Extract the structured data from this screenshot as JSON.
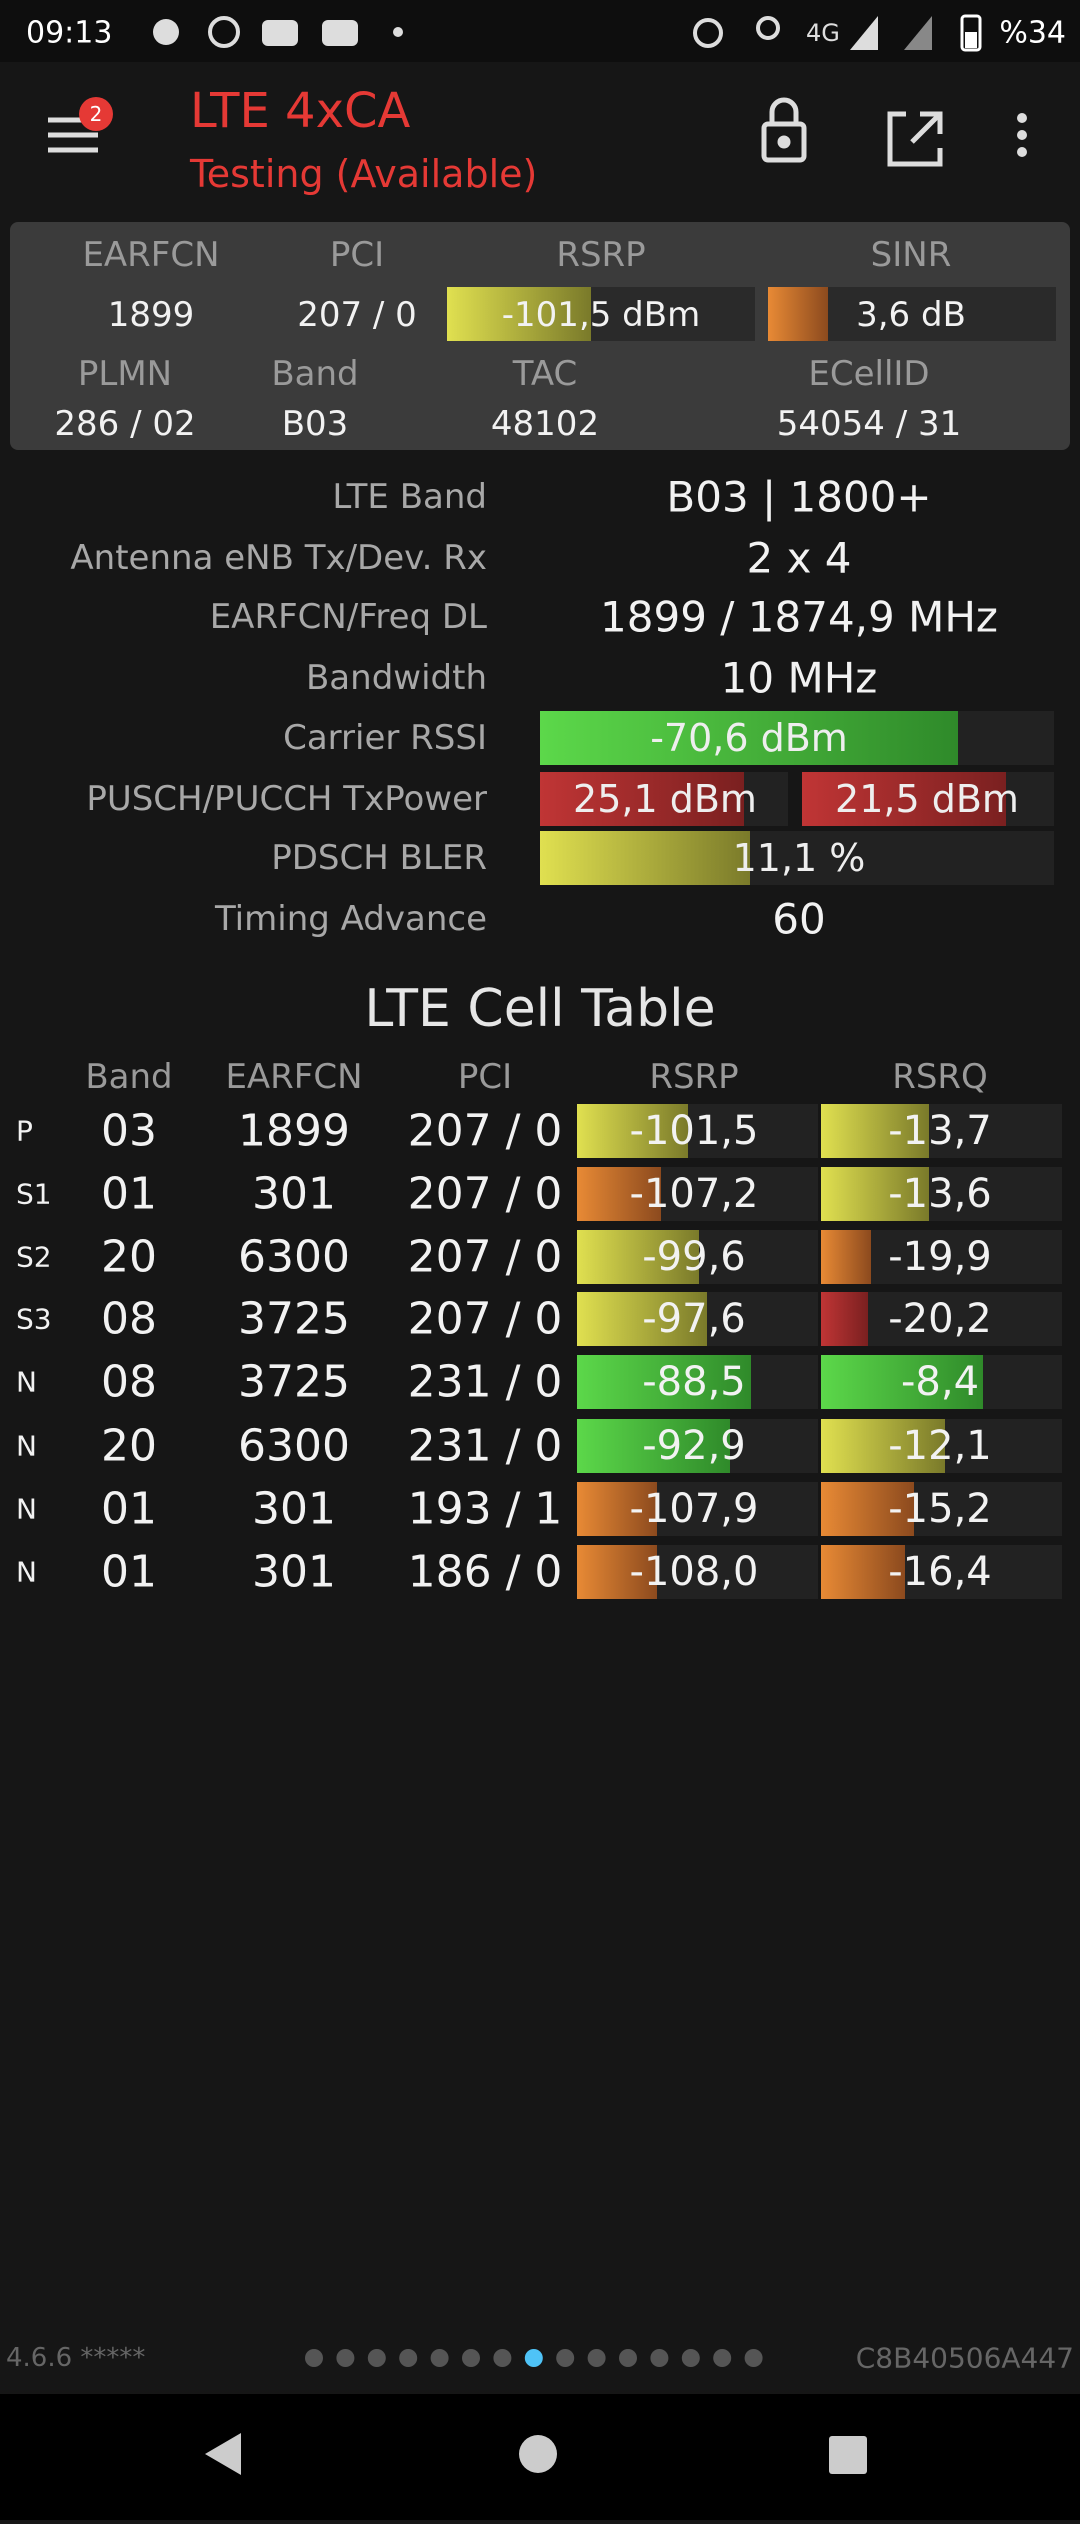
{
  "status_bar": {
    "time": "09:13",
    "network": "4G",
    "battery": "%34"
  },
  "app_bar": {
    "badge": "2",
    "title": "LTE 4xCA",
    "subtitle": "Testing (Available)"
  },
  "summary": {
    "headers": [
      "EARFCN",
      "PCI",
      "RSRP",
      "SINR"
    ],
    "values": [
      "1899",
      "207 / 0",
      "-101,5 dBm",
      "3,6 dB"
    ],
    "headers2": [
      "PLMN",
      "Band",
      "TAC",
      "ECellID"
    ],
    "values2": [
      "286 / 02",
      "B03",
      "48102",
      "54054 / 31"
    ]
  },
  "details": [
    {
      "label": "LTE Band",
      "values": [
        "B03 | 1800+"
      ]
    },
    {
      "label": "Antenna eNB Tx/Dev. Rx",
      "values": [
        "2 x 4"
      ]
    },
    {
      "label": "EARFCN/Freq DL",
      "values": [
        "1899 / 1874,9 MHz"
      ]
    },
    {
      "label": "Bandwidth",
      "values": [
        "10 MHz"
      ]
    },
    {
      "label": "Carrier RSSI",
      "values": [
        "-70,6 dBm"
      ]
    },
    {
      "label": "PUSCH/PUCCH TxPower",
      "values": [
        "25,1 dBm",
        "21,5 dBm"
      ]
    },
    {
      "label": "PDSCH BLER",
      "values": [
        "11,1 %"
      ]
    },
    {
      "label": "Timing Advance",
      "values": [
        "60"
      ]
    }
  ],
  "cell_table": {
    "title": "LTE Cell Table",
    "columns": [
      "Band",
      "EARFCN",
      "PCI",
      "RSRP",
      "RSRQ"
    ],
    "rows": [
      [
        "P",
        "03",
        "1899",
        "207 / 0",
        "-101,5",
        "-13,7"
      ],
      [
        "S1",
        "01",
        "301",
        "207 / 0",
        "-107,2",
        "-13,6"
      ],
      [
        "S2",
        "20",
        "6300",
        "207 / 0",
        "-99,6",
        "-19,9"
      ],
      [
        "S3",
        "08",
        "3725",
        "207 / 0",
        "-97,6",
        "-20,2"
      ],
      [
        "N",
        "08",
        "3725",
        "231 / 0",
        "-88,5",
        "-8,4"
      ],
      [
        "N",
        "20",
        "6300",
        "231 / 0",
        "-92,9",
        "-12,1"
      ],
      [
        "N",
        "01",
        "301",
        "193 / 1",
        "-107,9",
        "-15,2"
      ],
      [
        "N",
        "01",
        "301",
        "186 / 0",
        "-108,0",
        "-16,4"
      ]
    ]
  },
  "footer": {
    "version": "4.6.6 *****",
    "serial": "C8B40506A447"
  }
}
